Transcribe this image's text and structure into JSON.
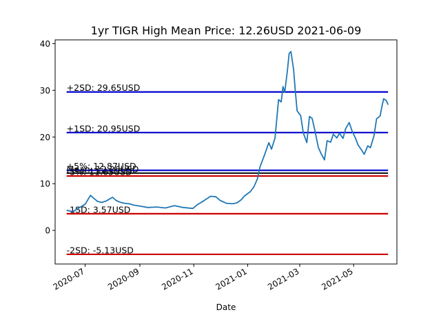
{
  "chart_data": {
    "type": "line",
    "title": "1yr TIGR High Mean Price: 12.26USD 2021-06-09",
    "xlabel": "Date",
    "ylabel": "",
    "x_ticks": [
      "2020-07-01",
      "2020-09-01",
      "2020-11-01",
      "2021-01-01",
      "2021-03-01",
      "2021-05-01"
    ],
    "x_tick_labels": [
      "2020-07",
      "2020-09",
      "2020-11",
      "2021-01",
      "2021-03",
      "2021-05"
    ],
    "y_ticks": [
      0,
      10,
      20,
      30,
      40
    ],
    "y_tick_labels": [
      "0",
      "10",
      "20",
      "30",
      "40"
    ],
    "xlim": [
      "2020-05-28",
      "2021-06-19"
    ],
    "ylim": [
      -7.2,
      40.8
    ],
    "grid": false,
    "series_color": "#1f77b4",
    "series": [
      {
        "name": "",
        "x": [
          "2020-06-10",
          "2020-06-17",
          "2020-06-24",
          "2020-07-01",
          "2020-07-07",
          "2020-07-10",
          "2020-07-15",
          "2020-07-20",
          "2020-07-25",
          "2020-08-01",
          "2020-08-05",
          "2020-08-10",
          "2020-08-15",
          "2020-08-20",
          "2020-08-25",
          "2020-09-01",
          "2020-09-10",
          "2020-09-20",
          "2020-09-30",
          "2020-10-10",
          "2020-10-20",
          "2020-10-31",
          "2020-11-05",
          "2020-11-12",
          "2020-11-20",
          "2020-11-26",
          "2020-12-01",
          "2020-12-08",
          "2020-12-15",
          "2020-12-20",
          "2020-12-25",
          "2020-12-28",
          "2021-01-04",
          "2021-01-08",
          "2021-01-12",
          "2021-01-15",
          "2021-01-20",
          "2021-01-25",
          "2021-01-28",
          "2021-02-01",
          "2021-02-05",
          "2021-02-08",
          "2021-02-10",
          "2021-02-12",
          "2021-02-15",
          "2021-02-17",
          "2021-02-19",
          "2021-02-22",
          "2021-02-24",
          "2021-02-26",
          "2021-03-02",
          "2021-03-05",
          "2021-03-09",
          "2021-03-12",
          "2021-03-15",
          "2021-03-18",
          "2021-03-22",
          "2021-03-25",
          "2021-03-29",
          "2021-04-01",
          "2021-04-05",
          "2021-04-08",
          "2021-04-12",
          "2021-04-15",
          "2021-04-19",
          "2021-04-22",
          "2021-04-26",
          "2021-04-29",
          "2021-05-03",
          "2021-05-06",
          "2021-05-10",
          "2021-05-13",
          "2021-05-17",
          "2021-05-20",
          "2021-05-24",
          "2021-05-27",
          "2021-05-31",
          "2021-06-02",
          "2021-06-04",
          "2021-06-07",
          "2021-06-09"
        ],
        "values": [
          4.3,
          4.0,
          4.8,
          5.6,
          7.5,
          7.0,
          6.2,
          6.0,
          6.3,
          7.1,
          6.4,
          6.0,
          5.8,
          5.7,
          5.4,
          5.2,
          4.9,
          5.0,
          4.8,
          5.3,
          4.9,
          4.7,
          5.5,
          6.3,
          7.3,
          7.2,
          6.4,
          5.8,
          5.7,
          5.9,
          6.6,
          7.3,
          8.3,
          9.3,
          11.0,
          13.6,
          16.1,
          18.8,
          17.4,
          19.8,
          28.0,
          27.5,
          30.8,
          29.6,
          34.2,
          37.9,
          38.3,
          34.5,
          29.8,
          25.6,
          24.6,
          20.9,
          18.8,
          24.4,
          24.0,
          21.5,
          17.8,
          16.5,
          15.1,
          19.2,
          18.9,
          20.6,
          19.8,
          20.8,
          19.7,
          21.8,
          23.1,
          21.4,
          19.8,
          18.3,
          17.2,
          16.3,
          18.1,
          17.7,
          20.2,
          23.9,
          24.5,
          26.5,
          28.2,
          27.8,
          26.9
        ]
      }
    ],
    "reference_lines": [
      {
        "value": 29.65,
        "label": "+2SD: 29.65USD",
        "color": "#0000cc"
      },
      {
        "value": 20.95,
        "label": "+1SD: 20.95USD",
        "color": "#0000cc"
      },
      {
        "value": 12.87,
        "label": "+5%: 12.87USD",
        "color": "#0000cc"
      },
      {
        "value": 12.26,
        "label": "Mean: 12.26USD",
        "color": "#111111"
      },
      {
        "value": 11.65,
        "label": "-5%: 11.65USD",
        "color": "#cc0000"
      },
      {
        "value": 3.57,
        "label": "-1SD: 3.57USD",
        "color": "#cc0000"
      },
      {
        "value": -5.13,
        "label": "-2SD: -5.13USD",
        "color": "#cc0000"
      }
    ]
  }
}
